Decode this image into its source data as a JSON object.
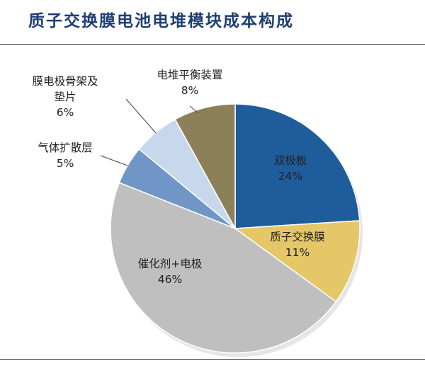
{
  "header": {
    "title": "质子交换膜电池电堆模块成本构成"
  },
  "chart_data": {
    "type": "pie",
    "title": "质子交换膜电池电堆模块成本构成",
    "slices": [
      {
        "label": "双极板",
        "value": 24,
        "value_label": "24%",
        "color": "#1f5c9c"
      },
      {
        "label": "质子交换膜",
        "value": 11,
        "value_label": "11%",
        "color": "#e6c768"
      },
      {
        "label": "催化剂+电极",
        "value": 46,
        "value_label": "46%",
        "color": "#bfbfbf"
      },
      {
        "label": "气体扩散层",
        "value": 5,
        "value_label": "5%",
        "color": "#7096c8"
      },
      {
        "label": "膜电极骨架及垫片",
        "label_lines": [
          "膜电极骨架及",
          "垫片"
        ],
        "value": 6,
        "value_label": "6%",
        "color": "#c8d8ec"
      },
      {
        "label": "电堆平衡装置",
        "value": 8,
        "value_label": "8%",
        "color": "#8c8058"
      }
    ],
    "start_angle": "12 o'clock",
    "direction": "clockwise",
    "legend": "none"
  }
}
